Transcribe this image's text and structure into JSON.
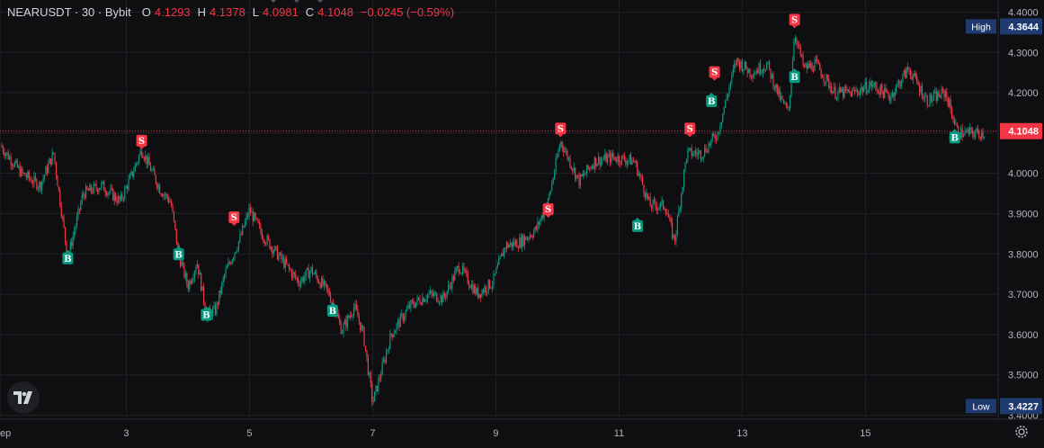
{
  "legend": {
    "symbol": "NEARUSDT · 30 · Bybit",
    "open_key": "O",
    "open": "4.1293",
    "high_key": "H",
    "high": "4.1378",
    "low_key": "L",
    "low": "4.0981",
    "close_key": "C",
    "close": "4.1048",
    "change": "−0.0245 (−0.59%)"
  },
  "colors": {
    "up": "#089981",
    "down": "#f23645",
    "background": "#0f0f12",
    "grid": "#1f2125",
    "label_bg": "#1e3a6e"
  },
  "icons": {
    "logo": "tradingview-logo-icon",
    "settings": "gear-icon"
  },
  "chart_data": {
    "type": "candlestick",
    "y_ticks": [
      "4.4000",
      "4.3000",
      "4.2000",
      "4.1000",
      "4.0000",
      "3.9000",
      "3.8000",
      "3.7000",
      "3.6000",
      "3.5000",
      "3.4000"
    ],
    "ylim": [
      3.39,
      4.43
    ],
    "x_ticks": [
      {
        "label": "ep",
        "day": 0.95
      },
      {
        "label": "3",
        "day": 3
      },
      {
        "label": "5",
        "day": 5
      },
      {
        "label": "7",
        "day": 7
      },
      {
        "label": "9",
        "day": 9
      },
      {
        "label": "11",
        "day": 11
      },
      {
        "label": "13",
        "day": 13
      },
      {
        "label": "15",
        "day": 15
      }
    ],
    "xlim_days": [
      0.95,
      16.95
    ],
    "price_path": [
      [
        0.95,
        4.07
      ],
      [
        1.3,
        4.0
      ],
      [
        1.6,
        3.97
      ],
      [
        1.82,
        4.05
      ],
      [
        2.05,
        3.79
      ],
      [
        2.3,
        3.95
      ],
      [
        2.6,
        3.97
      ],
      [
        2.9,
        3.93
      ],
      [
        3.1,
        4.0
      ],
      [
        3.25,
        4.06
      ],
      [
        3.55,
        3.96
      ],
      [
        3.72,
        3.93
      ],
      [
        3.85,
        3.8
      ],
      [
        4.0,
        3.72
      ],
      [
        4.15,
        3.78
      ],
      [
        4.3,
        3.65
      ],
      [
        4.45,
        3.66
      ],
      [
        4.6,
        3.75
      ],
      [
        4.85,
        3.84
      ],
      [
        5.0,
        3.91
      ],
      [
        5.2,
        3.85
      ],
      [
        5.45,
        3.8
      ],
      [
        5.8,
        3.73
      ],
      [
        6.0,
        3.76
      ],
      [
        6.3,
        3.7
      ],
      [
        6.5,
        3.61
      ],
      [
        6.7,
        3.67
      ],
      [
        6.85,
        3.6
      ],
      [
        7.0,
        3.43
      ],
      [
        7.3,
        3.6
      ],
      [
        7.6,
        3.67
      ],
      [
        7.9,
        3.7
      ],
      [
        8.15,
        3.69
      ],
      [
        8.4,
        3.77
      ],
      [
        8.7,
        3.7
      ],
      [
        8.95,
        3.73
      ],
      [
        9.15,
        3.82
      ],
      [
        9.4,
        3.83
      ],
      [
        9.65,
        3.86
      ],
      [
        9.85,
        3.93
      ],
      [
        10.05,
        4.08
      ],
      [
        10.35,
        3.98
      ],
      [
        10.6,
        4.03
      ],
      [
        10.9,
        4.04
      ],
      [
        11.25,
        4.03
      ],
      [
        11.5,
        3.92
      ],
      [
        11.75,
        3.92
      ],
      [
        11.9,
        3.83
      ],
      [
        12.1,
        4.05
      ],
      [
        12.35,
        4.05
      ],
      [
        12.6,
        4.1
      ],
      [
        12.9,
        4.28
      ],
      [
        13.15,
        4.25
      ],
      [
        13.4,
        4.27
      ],
      [
        13.6,
        4.19
      ],
      [
        13.75,
        4.15
      ],
      [
        13.85,
        4.35
      ],
      [
        14.0,
        4.26
      ],
      [
        14.2,
        4.27
      ],
      [
        14.5,
        4.2
      ],
      [
        14.8,
        4.2
      ],
      [
        15.1,
        4.22
      ],
      [
        15.4,
        4.19
      ],
      [
        15.7,
        4.26
      ],
      [
        16.0,
        4.18
      ],
      [
        16.3,
        4.2
      ],
      [
        16.5,
        4.1
      ]
    ],
    "last_price": {
      "value": 4.1048,
      "label": "4.1048"
    },
    "high_marker": {
      "title": "High",
      "value": 4.3644,
      "label": "4.3644"
    },
    "low_marker": {
      "title": "Low",
      "value": 3.4227,
      "label": "3.4227"
    },
    "signals": [
      {
        "type": "B",
        "day": 2.05,
        "price": 3.79
      },
      {
        "type": "S",
        "day": 3.25,
        "price": 4.08
      },
      {
        "type": "B",
        "day": 3.85,
        "price": 3.8
      },
      {
        "type": "B",
        "day": 4.3,
        "price": 3.65
      },
      {
        "type": "S",
        "day": 4.75,
        "price": 3.89
      },
      {
        "type": "B",
        "day": 6.35,
        "price": 3.66
      },
      {
        "type": "S",
        "day": 9.85,
        "price": 3.91
      },
      {
        "type": "S",
        "day": 10.05,
        "price": 4.11
      },
      {
        "type": "B",
        "day": 11.3,
        "price": 3.87
      },
      {
        "type": "S",
        "day": 12.15,
        "price": 4.11
      },
      {
        "type": "B",
        "day": 12.5,
        "price": 4.18
      },
      {
        "type": "S",
        "day": 12.55,
        "price": 4.25
      },
      {
        "type": "B",
        "day": 13.85,
        "price": 4.24
      },
      {
        "type": "S",
        "day": 13.85,
        "price": 4.38
      },
      {
        "type": "B",
        "day": 16.45,
        "price": 4.09
      }
    ]
  }
}
